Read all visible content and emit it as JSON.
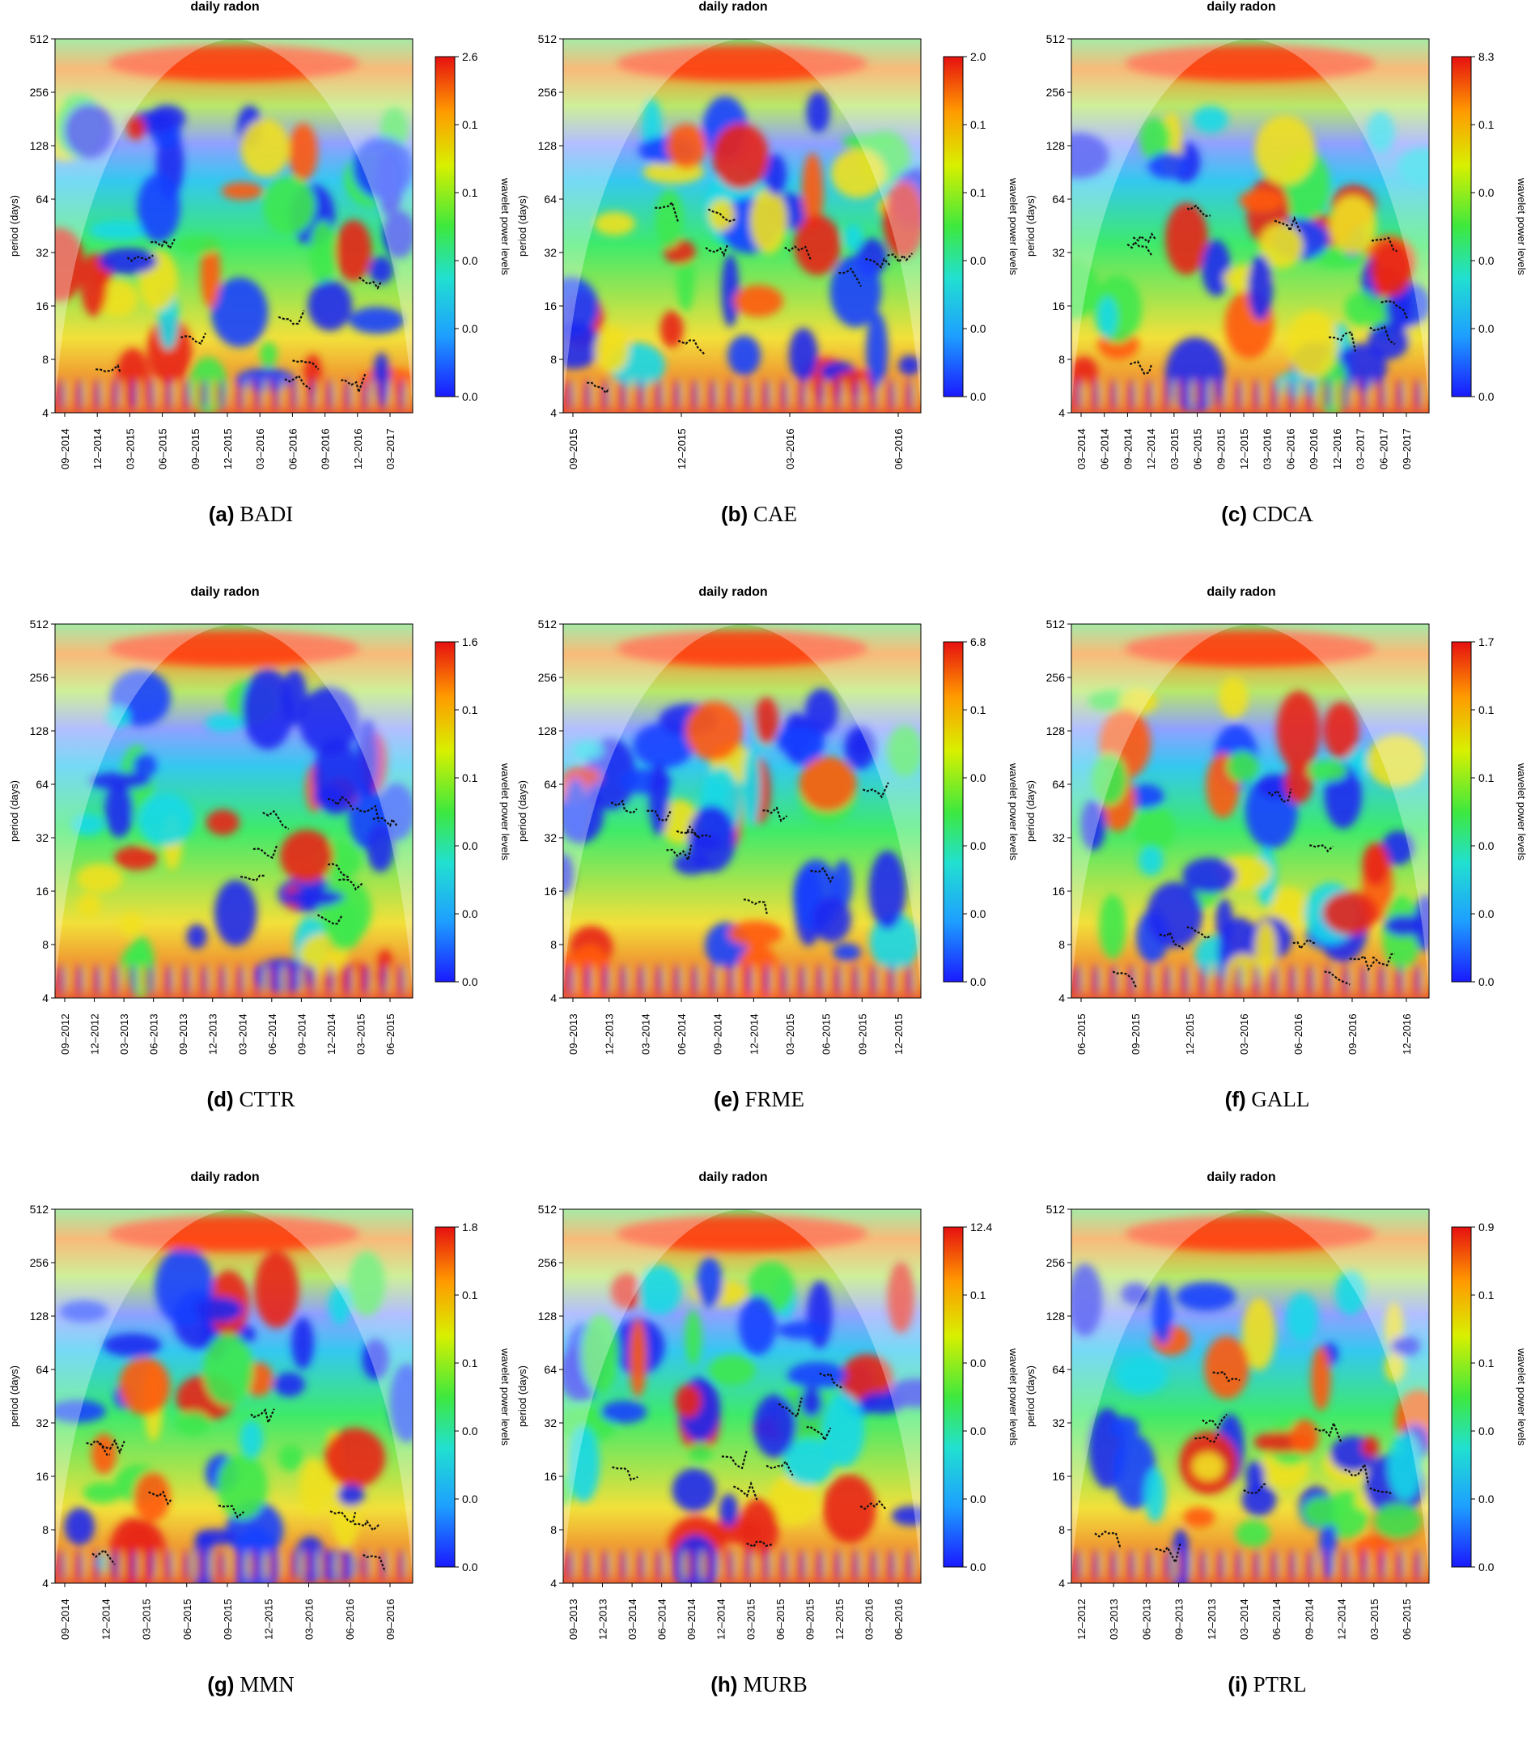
{
  "chart_data": [
    {
      "id": "a",
      "type": "heatmap",
      "title": "daily radon",
      "ylabel": "period (days)",
      "colorbar_label": "wavelet power levels",
      "yticks": [
        "512",
        "256",
        "128",
        "64",
        "32",
        "16",
        "8",
        "4"
      ],
      "xticks": [
        "09–2014",
        "12–2014",
        "03–2015",
        "06–2015",
        "09–2015",
        "12–2015",
        "03–2016",
        "06–2016",
        "09–2016",
        "12–2016",
        "03–2017"
      ],
      "colorbar_ticks": [
        "2.6",
        "0.1",
        "0.1",
        "0.0",
        "0.0",
        "0.0"
      ],
      "caption_letter": "(a)",
      "caption_name": "BADI"
    },
    {
      "id": "b",
      "type": "heatmap",
      "title": "daily radon",
      "ylabel": "period (days)",
      "colorbar_label": "wavelet power levels",
      "yticks": [
        "512",
        "256",
        "128",
        "64",
        "32",
        "16",
        "8",
        "4"
      ],
      "xticks": [
        "09–2015",
        "12–2015",
        "03–2016",
        "06–2016"
      ],
      "colorbar_ticks": [
        "2.0",
        "0.1",
        "0.1",
        "0.0",
        "0.0",
        "0.0"
      ],
      "caption_letter": "(b)",
      "caption_name": "CAE"
    },
    {
      "id": "c",
      "type": "heatmap",
      "title": "daily radon",
      "ylabel": "period (days)",
      "colorbar_label": "wavelet power levels",
      "yticks": [
        "512",
        "256",
        "128",
        "64",
        "32",
        "16",
        "8",
        "4"
      ],
      "xticks": [
        "03–2014",
        "06–2014",
        "09–2014",
        "12–2014",
        "03–2015",
        "06–2015",
        "09–2015",
        "12–2015",
        "03–2016",
        "06–2016",
        "09–2016",
        "12–2016",
        "03–2017",
        "06–2017",
        "09–2017"
      ],
      "colorbar_ticks": [
        "8.3",
        "0.1",
        "0.0",
        "0.0",
        "0.0",
        "0.0"
      ],
      "caption_letter": "(c)",
      "caption_name": "CDCA"
    },
    {
      "id": "d",
      "type": "heatmap",
      "title": "daily radon",
      "ylabel": "period (days)",
      "colorbar_label": "wavelet power levels",
      "yticks": [
        "512",
        "256",
        "128",
        "64",
        "32",
        "16",
        "8",
        "4"
      ],
      "xticks": [
        "09–2012",
        "12–2012",
        "03–2013",
        "06–2013",
        "09–2013",
        "12–2013",
        "03–2014",
        "06–2014",
        "09–2014",
        "12–2014",
        "03–2015",
        "06–2015"
      ],
      "colorbar_ticks": [
        "1.6",
        "0.1",
        "0.1",
        "0.0",
        "0.0",
        "0.0"
      ],
      "caption_letter": "(d)",
      "caption_name": "CTTR"
    },
    {
      "id": "e",
      "type": "heatmap",
      "title": "daily radon",
      "ylabel": "period (days)",
      "colorbar_label": "wavelet power levels",
      "yticks": [
        "512",
        "256",
        "128",
        "64",
        "32",
        "16",
        "8",
        "4"
      ],
      "xticks": [
        "09–2013",
        "12–2013",
        "03–2014",
        "06–2014",
        "09–2014",
        "12–2014",
        "03–2015",
        "06–2015",
        "09–2015",
        "12–2015"
      ],
      "colorbar_ticks": [
        "6.8",
        "0.1",
        "0.0",
        "0.0",
        "0.0",
        "0.0"
      ],
      "caption_letter": "(e)",
      "caption_name": "FRME"
    },
    {
      "id": "f",
      "type": "heatmap",
      "title": "daily radon",
      "ylabel": "period (days)",
      "colorbar_label": "wavelet power levels",
      "yticks": [
        "512",
        "256",
        "128",
        "64",
        "32",
        "16",
        "8",
        "4"
      ],
      "xticks": [
        "06–2015",
        "09–2015",
        "12–2015",
        "03–2016",
        "06–2016",
        "09–2016",
        "12–2016"
      ],
      "colorbar_ticks": [
        "1.7",
        "0.1",
        "0.1",
        "0.0",
        "0.0",
        "0.0"
      ],
      "caption_letter": "(f)",
      "caption_name": "GALL"
    },
    {
      "id": "g",
      "type": "heatmap",
      "title": "daily radon",
      "ylabel": "period (days)",
      "colorbar_label": "wavelet power levels",
      "yticks": [
        "512",
        "256",
        "128",
        "64",
        "32",
        "16",
        "8",
        "4"
      ],
      "xticks": [
        "09–2014",
        "12–2014",
        "03–2015",
        "06–2015",
        "09–2015",
        "12–2015",
        "03–2016",
        "06–2016",
        "09–2016"
      ],
      "colorbar_ticks": [
        "1.8",
        "0.1",
        "0.1",
        "0.0",
        "0.0",
        "0.0"
      ],
      "caption_letter": "(g)",
      "caption_name": "MMN"
    },
    {
      "id": "h",
      "type": "heatmap",
      "title": "daily radon",
      "ylabel": "period (days)",
      "colorbar_label": "wavelet power levels",
      "yticks": [
        "512",
        "256",
        "128",
        "64",
        "32",
        "16",
        "8",
        "4"
      ],
      "xticks": [
        "09–2013",
        "12–2013",
        "03–2014",
        "06–2014",
        "09–2014",
        "12–2014",
        "03–2015",
        "06–2015",
        "09–2015",
        "12–2015",
        "03–2016",
        "06–2016"
      ],
      "colorbar_ticks": [
        "12.4",
        "0.1",
        "0.0",
        "0.0",
        "0.0",
        "0.0"
      ],
      "caption_letter": "(h)",
      "caption_name": "MURB"
    },
    {
      "id": "i",
      "type": "heatmap",
      "title": "daily radon",
      "ylabel": "period (days)",
      "colorbar_label": "wavelet power levels",
      "yticks": [
        "512",
        "256",
        "128",
        "64",
        "32",
        "16",
        "8",
        "4"
      ],
      "xticks": [
        "12–2012",
        "03–2013",
        "06–2013",
        "09–2013",
        "12–2013",
        "03–2014",
        "06–2014",
        "09–2014",
        "12–2014",
        "03–2015",
        "06–2015"
      ],
      "colorbar_ticks": [
        "0.9",
        "0.1",
        "0.1",
        "0.0",
        "0.0",
        "0.0"
      ],
      "caption_letter": "(i)",
      "caption_name": "PTRL"
    }
  ]
}
